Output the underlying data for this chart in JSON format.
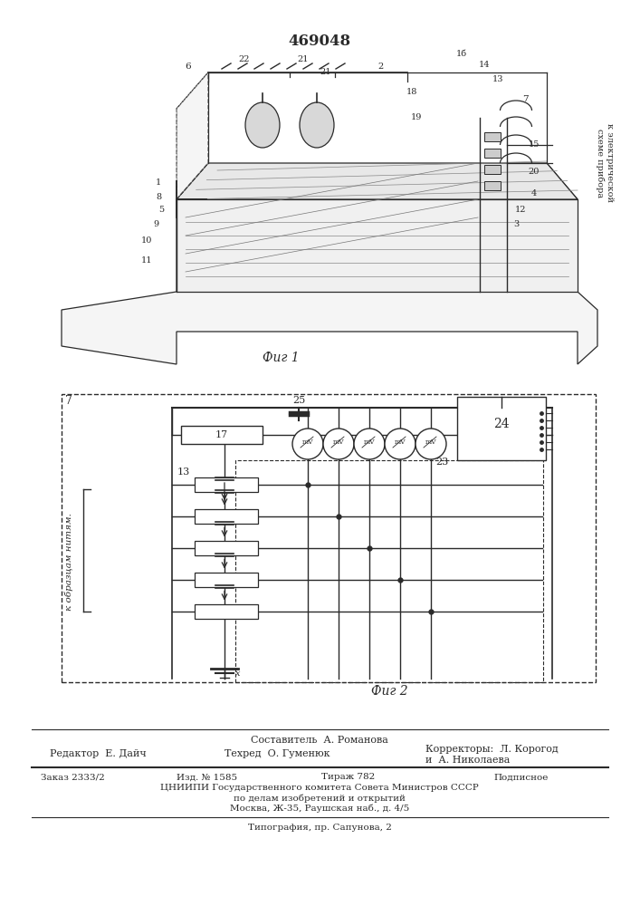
{
  "patent_number": "469048",
  "fig1_caption": "Фиг 1",
  "fig2_caption": "Фиг 2",
  "composer": "Составитель  А. Романова",
  "editor": "Редактор  Е. Дайч",
  "techred": "Техред  О. Гуменюк",
  "corr1": "Корректоры:  Л. Корогод",
  "corr2": "и  А. Николаева",
  "order": "Заказ 2333/2",
  "edition": "Изд. № 1585",
  "circulation": "Тираж 782",
  "subscription": "Подписное",
  "org_line1": "ЦНИИПИ Государственного комитета Совета Министров СССР",
  "org_line2": "по делам изобретений и открытий",
  "address": "Москва, Ж-35, Раушская наб., д. 4/5",
  "typography": "Типография, пр. Сапунова, 2",
  "vertical_text1": "к электрической",
  "vertical_text2": "схеме прибора",
  "left_text": "к образцам нитям.",
  "bg_color": "#ffffff"
}
